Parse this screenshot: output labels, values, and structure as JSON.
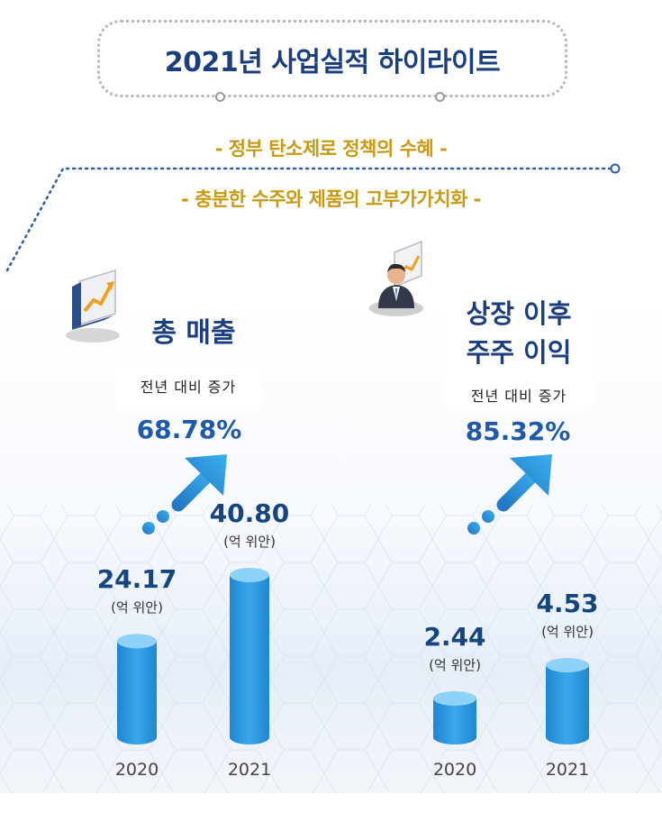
{
  "header": {
    "title": "2021년 사업실적 하이라이트",
    "subtitles": [
      "- 정부 탄소제로 정책의 수혜 -",
      "- 충분한 수주와 제품의 고부가가치화 -"
    ]
  },
  "chart_data": [
    {
      "type": "bar",
      "title": "총 매출",
      "growth_label": "전년 대비 증가",
      "growth_value": "68.78%",
      "categories": [
        "2020",
        "2021"
      ],
      "values": [
        24.17,
        40.8
      ],
      "value_labels": [
        "24.17",
        "40.80"
      ],
      "unit": "(억 위안)"
    },
    {
      "type": "bar",
      "title": "상장 이후 주주 이익",
      "title_lines": [
        "상장 이후",
        "주주 이익"
      ],
      "growth_label": "전년 대비 증가",
      "growth_value": "85.32%",
      "categories": [
        "2020",
        "2021"
      ],
      "values": [
        2.44,
        4.53
      ],
      "value_labels": [
        "2.44",
        "4.53"
      ],
      "unit": "(억 위안)"
    }
  ],
  "colors": {
    "title": "#1b3e7f",
    "subtitle": "#c79a12",
    "bar": "#2a9ae0",
    "bar_top": "#8ed2f7",
    "value": "#15457f",
    "growth": "#1f5aa8"
  },
  "icons": [
    "chart-growth-icon",
    "businessman-chart-icon",
    "growth-arrow-icon"
  ]
}
